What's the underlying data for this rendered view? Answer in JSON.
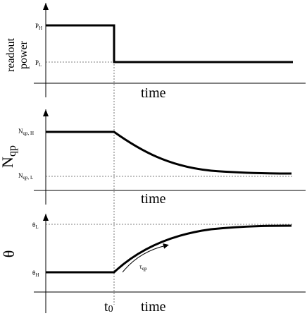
{
  "panels": [
    {
      "ylabel_line1": "readout",
      "ylabel_line2": "power",
      "xlabel": "time",
      "level_high_main": "P",
      "level_high_sub": "H",
      "level_low_main": "P",
      "level_low_sub": "L"
    },
    {
      "ylabel_main": "N",
      "ylabel_sub": "qp",
      "xlabel": "time",
      "level_high_main": "N",
      "level_high_sub": "qp, H",
      "level_low_main": "N",
      "level_low_sub": "qp, L"
    },
    {
      "ylabel": "θ",
      "xlabel": "time",
      "level_high_main": "θ",
      "level_high_sub": "L",
      "level_low_main": "θ",
      "level_low_sub": "H",
      "tau_main": "τ",
      "tau_sub": "qp"
    }
  ],
  "t0_main": "t",
  "t0_sub": "0"
}
